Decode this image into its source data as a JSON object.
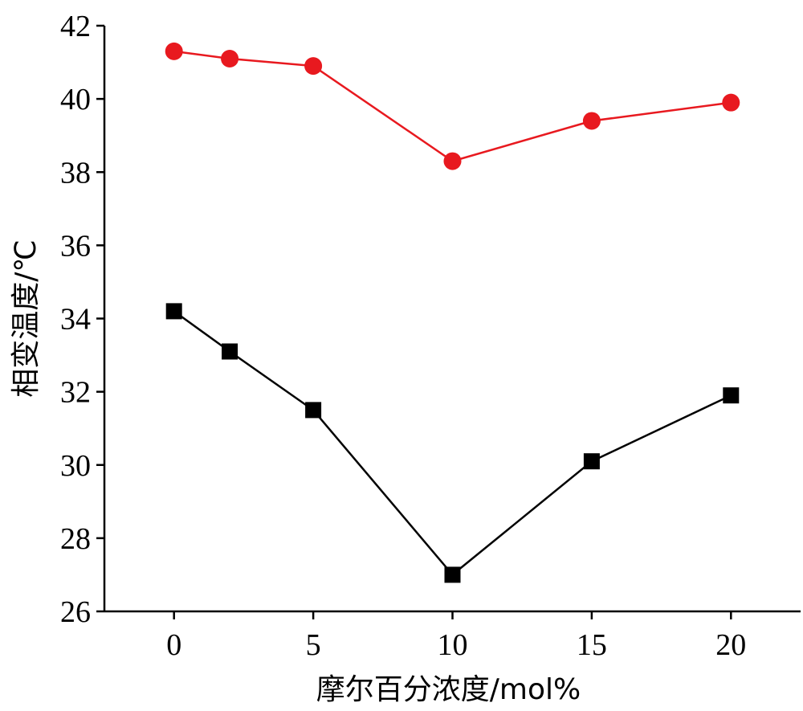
{
  "chart_data": {
    "type": "line",
    "title": "",
    "xlabel": "摩尔百分浓度/mol%",
    "ylabel": "相变温度/℃",
    "xlim": [
      -2.5,
      22.5
    ],
    "ylim": [
      26,
      42
    ],
    "xticks": [
      0,
      5,
      10,
      15,
      20
    ],
    "yticks": [
      26,
      28,
      30,
      32,
      34,
      36,
      38,
      40,
      42
    ],
    "grid": false,
    "series": [
      {
        "marker": "circle",
        "color": "#e8191f",
        "x": [
          0,
          2,
          5,
          10,
          15,
          20
        ],
        "y": [
          41.3,
          41.1,
          40.9,
          38.3,
          39.4,
          39.9
        ]
      },
      {
        "marker": "square",
        "color": "#000000",
        "x": [
          0,
          2,
          5,
          10,
          15,
          20
        ],
        "y": [
          34.2,
          33.1,
          31.5,
          27.0,
          30.1,
          31.9
        ]
      }
    ]
  }
}
